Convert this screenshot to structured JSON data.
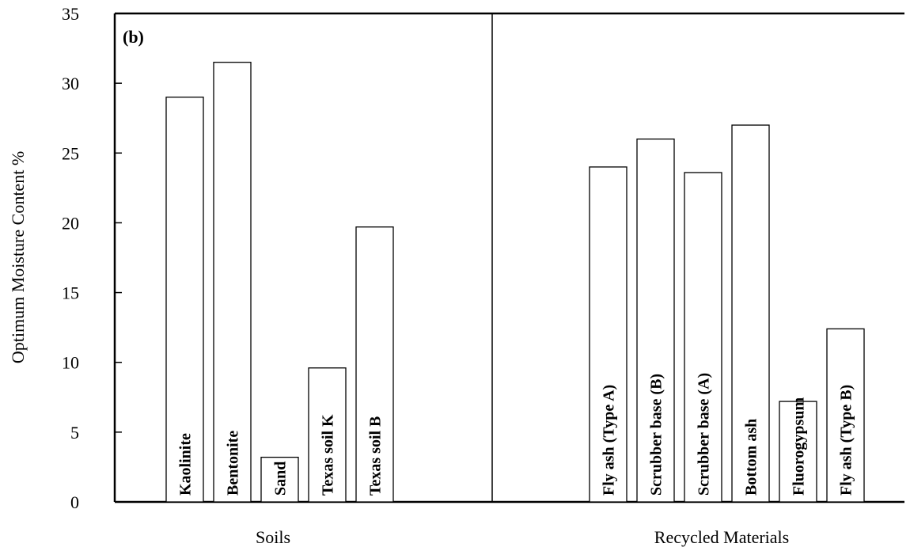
{
  "chart_data": {
    "type": "bar",
    "panel_label": "(b)",
    "xlabel": "",
    "ylabel": "Optimum Moisture Content %",
    "ylim": [
      0,
      35
    ],
    "yticks": [
      0,
      5,
      10,
      15,
      20,
      25,
      30,
      35
    ],
    "grid": false,
    "legend": "none",
    "groups": [
      {
        "name": "Soils",
        "bars": [
          {
            "label": "Kaolinite",
            "value": 29
          },
          {
            "label": "Bentonite",
            "value": 31.5
          },
          {
            "label": "Sand",
            "value": 3.2
          },
          {
            "label": "Texas soil K",
            "value": 9.6
          },
          {
            "label": "Texas soil B",
            "value": 19.7
          }
        ]
      },
      {
        "name": "Recycled Materials",
        "bars": [
          {
            "label": "Fly ash (Type A)",
            "value": 24
          },
          {
            "label": "Scrubber base (B)",
            "value": 26
          },
          {
            "label": "Scrubber base (A)",
            "value": 23.6
          },
          {
            "label": "Bottom ash",
            "value": 27
          },
          {
            "label": "Fluorogypsum",
            "value": 7.2
          },
          {
            "label": "Fly ash (Type B)",
            "value": 12.4
          }
        ]
      }
    ]
  }
}
